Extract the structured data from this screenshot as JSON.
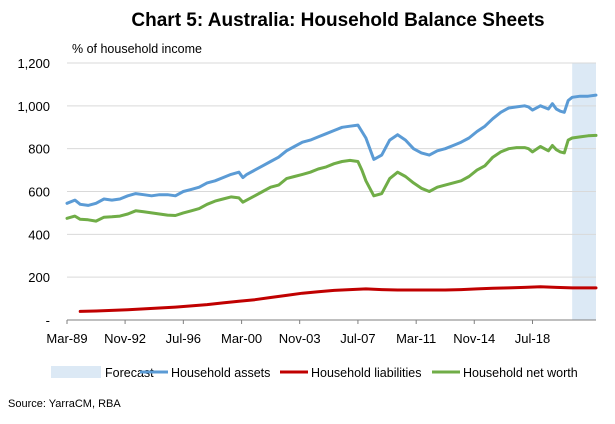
{
  "chart_data": {
    "type": "line",
    "title": "Chart 5: Australia: Household Balance Sheets",
    "ylabel": "% of household income",
    "xlabel": "",
    "source": "Source: YarraCM, RBA",
    "ylim": [
      0,
      1200
    ],
    "xlim": [
      1989.17,
      2022.5
    ],
    "y_ticks": [
      {
        "value": 0,
        "label": "-"
      },
      {
        "value": 200,
        "label": "200"
      },
      {
        "value": 400,
        "label": "400"
      },
      {
        "value": 600,
        "label": "600"
      },
      {
        "value": 800,
        "label": "800"
      },
      {
        "value": 1000,
        "label": "1,000"
      },
      {
        "value": 1200,
        "label": "1,200"
      }
    ],
    "x_ticks": [
      {
        "value": 1989.17,
        "label": "Mar-89"
      },
      {
        "value": 1992.83,
        "label": "Nov-92"
      },
      {
        "value": 1996.5,
        "label": "Jul-96"
      },
      {
        "value": 2000.17,
        "label": "Mar-00"
      },
      {
        "value": 2003.83,
        "label": "Nov-03"
      },
      {
        "value": 2007.5,
        "label": "Jul-07"
      },
      {
        "value": 2011.17,
        "label": "Mar-11"
      },
      {
        "value": 2014.83,
        "label": "Nov-14"
      },
      {
        "value": 2018.5,
        "label": "Jul-18"
      }
    ],
    "grid": "horizontal",
    "legend_position": "bottom",
    "forecast": {
      "name": "Forecast",
      "x_start": 2021.0,
      "x_end": 2022.5,
      "color": "#dce9f5"
    },
    "series": [
      {
        "name": "Household assets",
        "color": "#5b9bd5",
        "x": [
          1989.17,
          1989.67,
          1990.0,
          1990.5,
          1991.0,
          1991.5,
          1992.0,
          1992.5,
          1993.0,
          1993.5,
          1994.0,
          1994.5,
          1995.0,
          1995.5,
          1996.0,
          1996.5,
          1997.0,
          1997.5,
          1998.0,
          1998.5,
          1999.0,
          1999.5,
          2000.0,
          2000.25,
          2000.5,
          2001.0,
          2001.5,
          2002.0,
          2002.5,
          2003.0,
          2003.5,
          2004.0,
          2004.5,
          2005.0,
          2005.5,
          2006.0,
          2006.5,
          2007.0,
          2007.5,
          2007.75,
          2008.0,
          2008.5,
          2009.0,
          2009.5,
          2010.0,
          2010.5,
          2011.0,
          2011.5,
          2012.0,
          2012.5,
          2013.0,
          2013.5,
          2014.0,
          2014.5,
          2015.0,
          2015.5,
          2016.0,
          2016.5,
          2017.0,
          2017.5,
          2018.0,
          2018.25,
          2018.5,
          2019.0,
          2019.5,
          2019.75,
          2020.0,
          2020.25,
          2020.5,
          2020.75,
          2021.0,
          2021.5,
          2022.0,
          2022.5
        ],
        "values": [
          545,
          560,
          540,
          535,
          545,
          565,
          560,
          565,
          580,
          590,
          585,
          580,
          585,
          585,
          580,
          600,
          610,
          620,
          640,
          650,
          665,
          680,
          690,
          665,
          680,
          700,
          720,
          740,
          760,
          790,
          810,
          830,
          840,
          855,
          870,
          885,
          900,
          905,
          910,
          880,
          850,
          750,
          770,
          840,
          865,
          840,
          800,
          780,
          770,
          790,
          800,
          815,
          830,
          850,
          880,
          905,
          940,
          970,
          990,
          995,
          1000,
          995,
          980,
          1000,
          985,
          1010,
          985,
          975,
          970,
          1025,
          1040,
          1045,
          1045,
          1050
        ]
      },
      {
        "name": "Household liabilities",
        "color": "#c00000",
        "x": [
          1990.0,
          1991.0,
          1992.0,
          1993.0,
          1994.0,
          1995.0,
          1996.0,
          1997.0,
          1998.0,
          1999.0,
          2000.0,
          2001.0,
          2002.0,
          2003.0,
          2004.0,
          2005.0,
          2006.0,
          2007.0,
          2008.0,
          2009.0,
          2010.0,
          2011.0,
          2012.0,
          2013.0,
          2014.0,
          2015.0,
          2016.0,
          2017.0,
          2018.0,
          2019.0,
          2020.0,
          2021.0,
          2022.0,
          2022.5
        ],
        "values": [
          40,
          42,
          45,
          48,
          52,
          56,
          60,
          66,
          72,
          80,
          88,
          95,
          105,
          115,
          125,
          132,
          138,
          142,
          145,
          142,
          140,
          140,
          140,
          140,
          142,
          145,
          148,
          150,
          152,
          155,
          152,
          150,
          150,
          150
        ]
      },
      {
        "name": "Household net worth",
        "color": "#70ad47",
        "x": [
          1989.17,
          1989.67,
          1990.0,
          1990.5,
          1991.0,
          1991.5,
          1992.0,
          1992.5,
          1993.0,
          1993.5,
          1994.0,
          1994.5,
          1995.0,
          1995.5,
          1996.0,
          1996.5,
          1997.0,
          1997.5,
          1998.0,
          1998.5,
          1999.0,
          1999.5,
          2000.0,
          2000.25,
          2000.5,
          2001.0,
          2001.5,
          2002.0,
          2002.5,
          2003.0,
          2003.5,
          2004.0,
          2004.5,
          2005.0,
          2005.5,
          2006.0,
          2006.5,
          2007.0,
          2007.5,
          2007.75,
          2008.0,
          2008.5,
          2009.0,
          2009.5,
          2010.0,
          2010.5,
          2011.0,
          2011.5,
          2012.0,
          2012.5,
          2013.0,
          2013.5,
          2014.0,
          2014.5,
          2015.0,
          2015.5,
          2016.0,
          2016.5,
          2017.0,
          2017.5,
          2018.0,
          2018.25,
          2018.5,
          2019.0,
          2019.5,
          2019.75,
          2020.0,
          2020.25,
          2020.5,
          2020.75,
          2021.0,
          2021.5,
          2022.0,
          2022.5
        ],
        "values": [
          475,
          485,
          470,
          468,
          462,
          480,
          482,
          485,
          495,
          510,
          505,
          500,
          495,
          490,
          488,
          500,
          510,
          520,
          540,
          555,
          565,
          575,
          570,
          550,
          560,
          580,
          600,
          620,
          630,
          660,
          670,
          680,
          690,
          705,
          715,
          730,
          740,
          745,
          740,
          700,
          650,
          580,
          590,
          660,
          690,
          670,
          640,
          615,
          600,
          620,
          630,
          640,
          650,
          670,
          700,
          720,
          760,
          785,
          800,
          805,
          805,
          800,
          785,
          810,
          790,
          815,
          795,
          785,
          780,
          840,
          850,
          855,
          860,
          862
        ]
      }
    ]
  }
}
